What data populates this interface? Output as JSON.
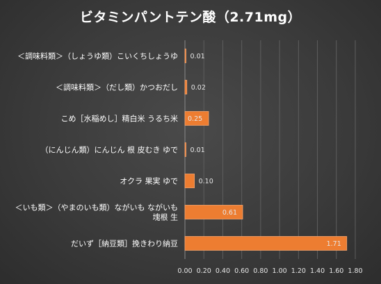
{
  "chart_data": {
    "type": "bar",
    "orientation": "horizontal",
    "title": "ビタミンパントテン酸（2.71mg）",
    "categories": [
      [
        "＜調味料類＞（しょうゆ類）こいくちしょうゆ"
      ],
      [
        "＜調味料類＞（だし類）かつおだし"
      ],
      [
        "こめ［水稲めし］精白米 うるち米"
      ],
      [
        "（にんじん類）にんじん 根 皮むき ゆで"
      ],
      [
        "オクラ 果実 ゆで"
      ],
      [
        "＜いも類＞（やまのいも類）ながいも ながいも",
        "塊根 生"
      ],
      [
        "だいず［納豆類］挽きわり納豆"
      ]
    ],
    "values": [
      0.01,
      0.02,
      0.25,
      0.01,
      0.1,
      0.61,
      1.71
    ],
    "value_labels": [
      "0.01",
      "0.02",
      "0.25",
      "0.01",
      "0.10",
      "0.61",
      "1.71"
    ],
    "xlim": [
      0,
      1.8
    ],
    "xticks": [
      "0.00",
      "0.20",
      "0.40",
      "0.60",
      "0.80",
      "1.00",
      "1.20",
      "1.40",
      "1.60",
      "1.80"
    ],
    "bar_color": "#ed7d31",
    "grid": true,
    "legend": false
  }
}
